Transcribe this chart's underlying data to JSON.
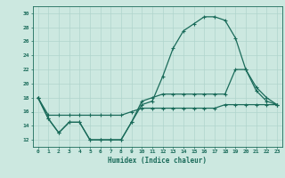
{
  "xlabel": "Humidex (Indice chaleur)",
  "bg_color": "#cce8e0",
  "line_color": "#1a6b5a",
  "grid_color": "#b0d4cc",
  "xlim": [
    -0.5,
    23.5
  ],
  "ylim": [
    11,
    31
  ],
  "xticks": [
    0,
    1,
    2,
    3,
    4,
    5,
    6,
    7,
    8,
    9,
    10,
    11,
    12,
    13,
    14,
    15,
    16,
    17,
    18,
    19,
    20,
    21,
    22,
    23
  ],
  "yticks": [
    12,
    14,
    16,
    18,
    20,
    22,
    24,
    26,
    28,
    30
  ],
  "curve1": [
    18,
    15,
    13,
    14.5,
    14.5,
    12,
    12,
    12,
    12,
    14.5,
    17,
    17.5,
    21,
    25,
    27.5,
    28.5,
    29.5,
    29.5,
    29,
    26.5,
    22,
    19,
    17.5,
    17
  ],
  "curve2": [
    18,
    15,
    13,
    14.5,
    14.5,
    12,
    12,
    12,
    12,
    14.5,
    17.5,
    18,
    18.5,
    18.5,
    18.5,
    18.5,
    18.5,
    18.5,
    18.5,
    22,
    22,
    19.5,
    18,
    17
  ],
  "curve3": [
    18,
    15.5,
    15.5,
    15.5,
    15.5,
    15.5,
    15.5,
    15.5,
    15.5,
    16,
    16.5,
    16.5,
    16.5,
    16.5,
    16.5,
    16.5,
    16.5,
    16.5,
    17,
    17,
    17,
    17,
    17,
    17
  ]
}
